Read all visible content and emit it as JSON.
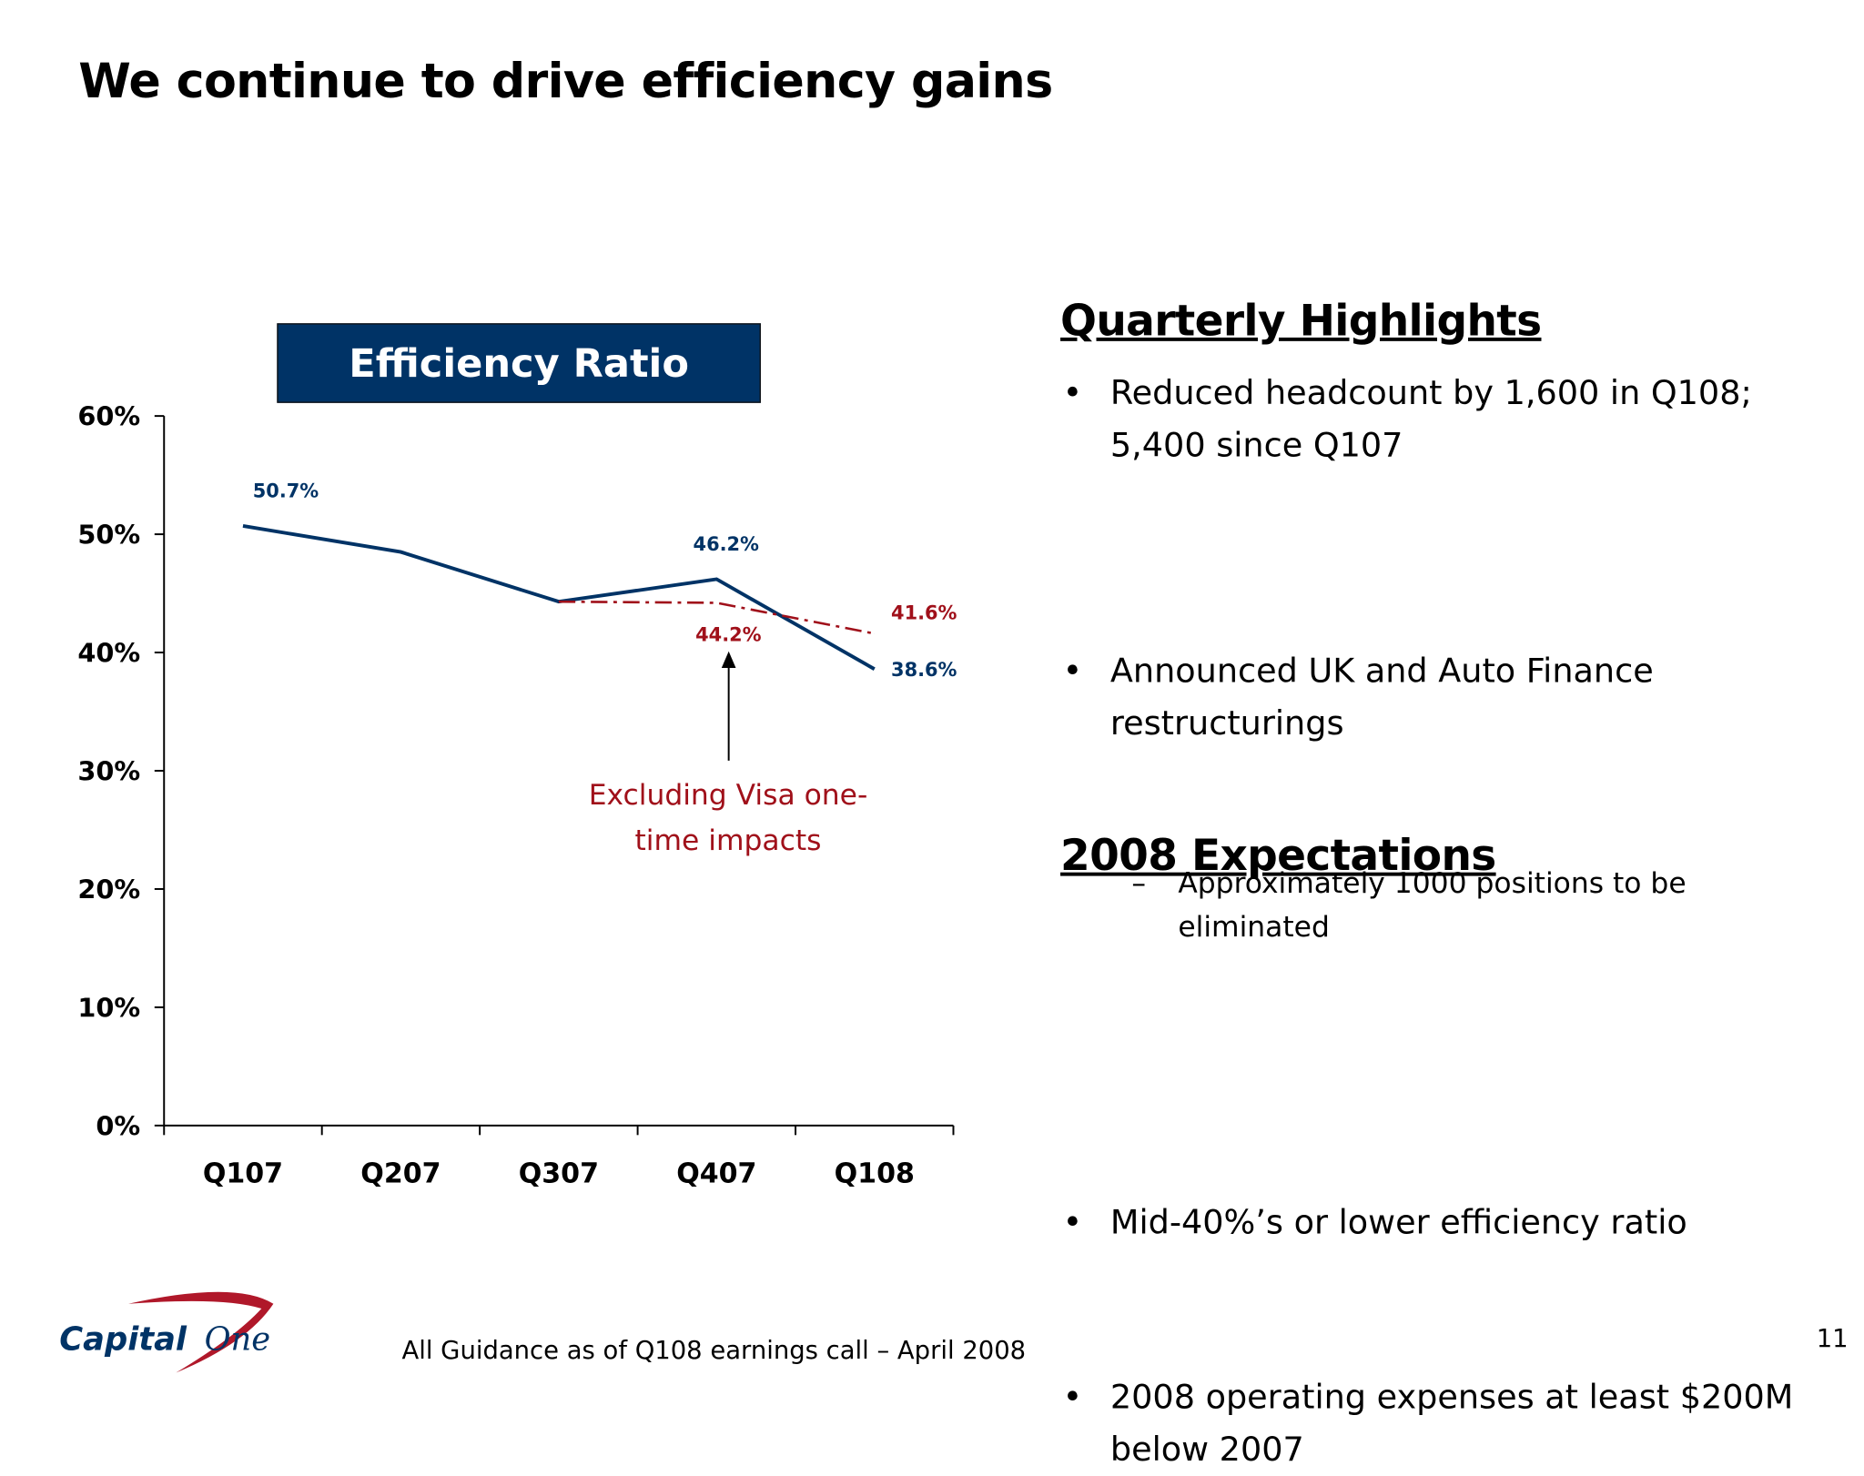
{
  "title": "We continue to drive efficiency gains",
  "chart_data": {
    "type": "line",
    "title": "Efficiency Ratio",
    "categories": [
      "Q107",
      "Q207",
      "Q307",
      "Q407",
      "Q108"
    ],
    "ylim": [
      0,
      60
    ],
    "yticks": [
      "0%",
      "10%",
      "20%",
      "30%",
      "40%",
      "50%",
      "60%"
    ],
    "grid": false,
    "series": [
      {
        "values": [
          50.7,
          48.5,
          44.3,
          46.2,
          38.6
        ],
        "color": "#003366",
        "style": "solid",
        "labels": [
          "50.7%",
          null,
          null,
          "46.2%",
          "38.6%"
        ]
      },
      {
        "values": [
          null,
          null,
          44.3,
          44.2,
          41.6
        ],
        "color": "#a0101a",
        "style": "dash-dot",
        "labels": [
          null,
          null,
          null,
          "44.2%",
          "41.6%"
        ]
      }
    ],
    "annotation": "Excluding Visa one-time impacts"
  },
  "highlights": {
    "heading": "Quarterly Highlights",
    "bullets": [
      "Reduced headcount by 1,600 in Q108; 5,400 since Q107",
      "Announced UK and Auto Finance restructurings"
    ],
    "sub_bullet": "Approximately 1000 positions to be eliminated",
    "bullet_symbol": "•",
    "dash_symbol": "–"
  },
  "expectations": {
    "heading": "2008 Expectations",
    "bullets": [
      "Mid-40%’s or lower efficiency ratio",
      "2008 operating expenses at least $200M below 2007"
    ]
  },
  "footer": {
    "note": "All Guidance as of Q108 earnings call – April 2008",
    "page_number": "11",
    "logo_text": "Capital One"
  },
  "colors": {
    "navy": "#003366",
    "red": "#a0101a"
  }
}
